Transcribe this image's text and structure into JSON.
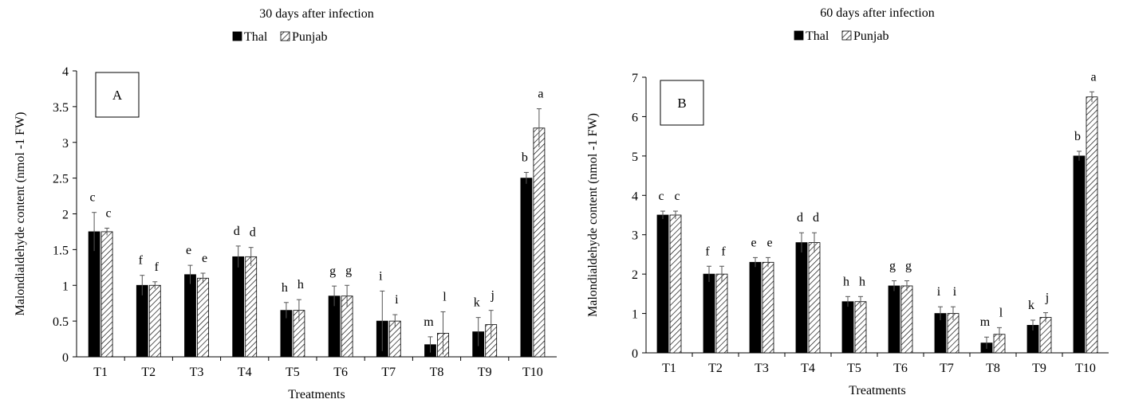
{
  "chart_data": [
    {
      "type": "bar",
      "title": "30 days after infection",
      "panel_label": "A",
      "xlabel": "Treatments",
      "ylabel": "Malondialdehyde content (nmol -1  FW)",
      "ylim": [
        0,
        4
      ],
      "yticks": [
        0,
        0.5,
        1,
        1.5,
        2,
        2.5,
        3,
        3.5,
        4
      ],
      "ytick_labels": [
        "0",
        "0.5",
        "1",
        "1.5",
        "2",
        "2.5",
        "3",
        "3.5",
        "4"
      ],
      "grid": false,
      "legend": "top-center",
      "categories": [
        "T1",
        "T2",
        "T3",
        "T4",
        "T5",
        "T6",
        "T7",
        "T8",
        "T9",
        "T10"
      ],
      "series": [
        {
          "name": "Thal",
          "fill": "solid",
          "color": "#000000",
          "values": [
            1.75,
            1.0,
            1.15,
            1.4,
            0.65,
            0.85,
            0.5,
            0.17,
            0.35,
            2.5
          ],
          "errors": [
            0.27,
            0.14,
            0.13,
            0.15,
            0.11,
            0.14,
            0.42,
            0.11,
            0.2,
            0.08
          ],
          "letters": [
            "c",
            "f",
            "e",
            "d",
            "h",
            "g",
            "i",
            "m",
            "k",
            "b"
          ]
        },
        {
          "name": "Punjab",
          "fill": "hatched",
          "color": "#000000",
          "values": [
            1.75,
            1.0,
            1.1,
            1.4,
            0.65,
            0.85,
            0.5,
            0.33,
            0.45,
            3.2
          ],
          "errors": [
            0.05,
            0.05,
            0.07,
            0.13,
            0.15,
            0.15,
            0.09,
            0.3,
            0.2,
            0.27
          ],
          "letters": [
            "c",
            "f",
            "e",
            "d",
            "h",
            "g",
            "i",
            "l",
            "j",
            "a"
          ]
        }
      ]
    },
    {
      "type": "bar",
      "title": "60 days after infection",
      "panel_label": "B",
      "xlabel": "Treatments",
      "ylabel": "Malondialdehyde content (nmol -1  FW)",
      "ylim": [
        0,
        7
      ],
      "yticks": [
        0,
        1,
        2,
        3,
        4,
        5,
        6,
        7
      ],
      "ytick_labels": [
        "0",
        "1",
        "2",
        "3",
        "4",
        "5",
        "6",
        "7"
      ],
      "grid": false,
      "legend": "top-center",
      "categories": [
        "T1",
        "T2",
        "T3",
        "T4",
        "T5",
        "T6",
        "T7",
        "T8",
        "T9",
        "T10"
      ],
      "series": [
        {
          "name": "Thal",
          "fill": "solid",
          "color": "#000000",
          "values": [
            3.5,
            2.0,
            2.3,
            2.8,
            1.3,
            1.7,
            1.0,
            0.25,
            0.7,
            5.0
          ],
          "errors": [
            0.1,
            0.2,
            0.12,
            0.25,
            0.13,
            0.13,
            0.17,
            0.15,
            0.13,
            0.12
          ],
          "letters": [
            "c",
            "f",
            "e",
            "d",
            "h",
            "g",
            "i",
            "m",
            "k",
            "b"
          ]
        },
        {
          "name": "Punjab",
          "fill": "hatched",
          "color": "#000000",
          "values": [
            3.5,
            2.0,
            2.3,
            2.8,
            1.3,
            1.7,
            1.0,
            0.47,
            0.9,
            6.5
          ],
          "errors": [
            0.1,
            0.2,
            0.12,
            0.25,
            0.13,
            0.13,
            0.17,
            0.17,
            0.12,
            0.13
          ],
          "letters": [
            "c",
            "f",
            "e",
            "d",
            "h",
            "g",
            "i",
            "l",
            "j",
            "a"
          ]
        }
      ]
    }
  ]
}
